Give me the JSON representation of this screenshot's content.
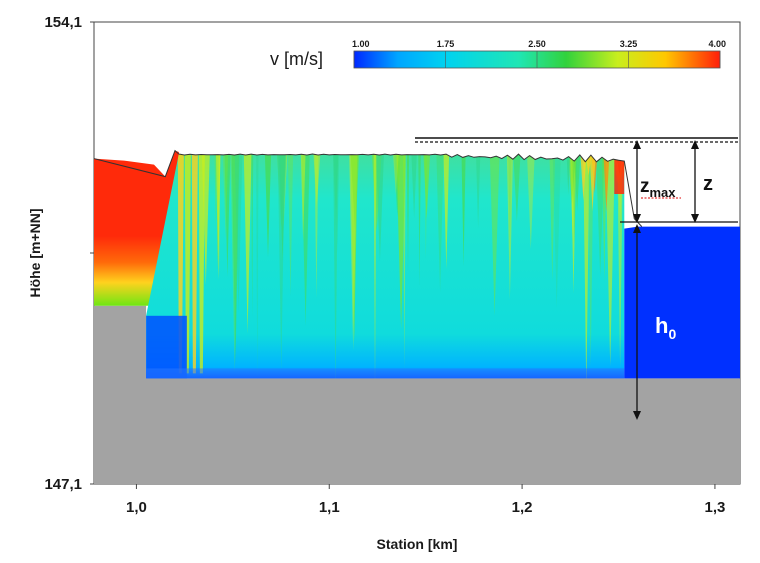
{
  "chart_data": {
    "type": "heatmap",
    "title": "",
    "xlabel": "Station [km]",
    "ylabel": "Höhe [m+NN]",
    "x_ticks": [
      "1,0",
      "1,1",
      "1,2",
      "1,3"
    ],
    "x_tick_values": [
      1.0,
      1.1,
      1.2,
      1.3
    ],
    "xlim": [
      0.978,
      1.313
    ],
    "y_ticks": [
      "154,1",
      "147,1"
    ],
    "y_tick_values": [
      154.1,
      147.1
    ],
    "ylim": [
      147.1,
      154.1
    ],
    "colorbar": {
      "title": "v [m/s]",
      "ticks": [
        "1.00",
        "1.75",
        "2.50",
        "3.25",
        "4.00"
      ],
      "tick_values": [
        1.0,
        1.75,
        2.5,
        3.25,
        4.0
      ],
      "range": [
        1.0,
        4.0
      ],
      "colors": [
        "#0028ff",
        "#00c8ff",
        "#20e6cc",
        "#28d23c",
        "#d2ee1e",
        "#ffc800",
        "#ff1e0a"
      ]
    },
    "annotations": {
      "z_max": {
        "main": "z",
        "sub": "max"
      },
      "z": {
        "main": "z"
      },
      "h0": {
        "main": "h",
        "sub": "0"
      }
    },
    "geometry": {
      "ground_left_top_m": 149.8,
      "ground_floor_m": 148.7,
      "step_station_km": 1.005,
      "weir_station_km": 1.253,
      "headwater_level_m": 152.1,
      "tailwater_level_m": 151.0,
      "downstream_start_km": 1.26
    },
    "colors": {
      "ground": "#a3a3a3",
      "upstream_fast": "#ff2a0a",
      "tailwater": "#0030ff",
      "plot_background": "#ffffff"
    }
  }
}
